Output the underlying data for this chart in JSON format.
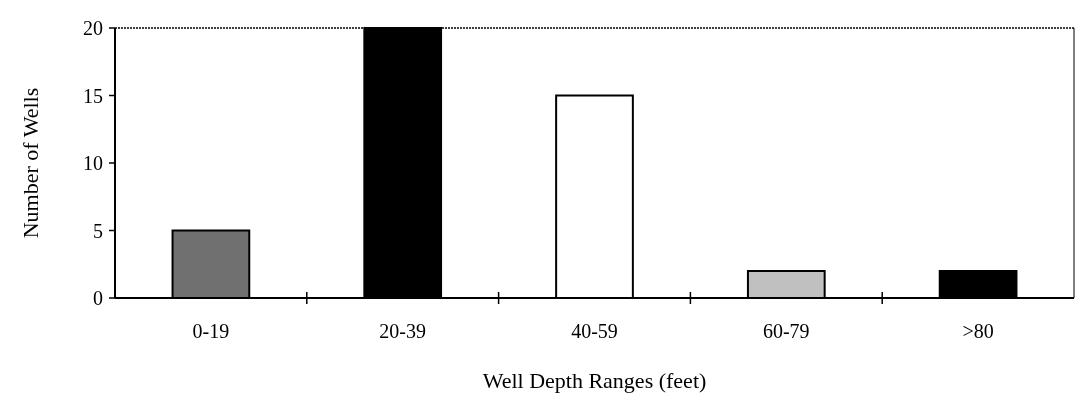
{
  "chart_data": {
    "type": "bar",
    "xlabel": "Well Depth Ranges (feet)",
    "ylabel": "Number of Wells",
    "categories": [
      "0-19",
      "20-39",
      "40-59",
      "60-79",
      ">80"
    ],
    "values": [
      5,
      20,
      15,
      2,
      2
    ],
    "colors": [
      "#707070",
      "#000000",
      "#ffffff",
      "#c0c0c0",
      "#000000"
    ],
    "ylim": [
      0,
      20
    ],
    "yticks": [
      0,
      5,
      10,
      15,
      20
    ],
    "grid": false
  }
}
